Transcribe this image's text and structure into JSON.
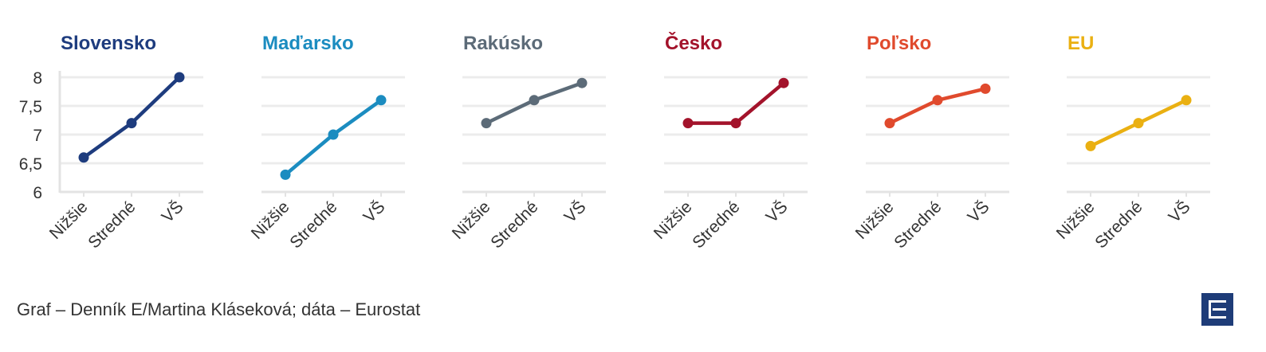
{
  "chart_data": {
    "type": "line",
    "categories": [
      "Nižšie",
      "Stredné",
      "VŠ"
    ],
    "ylim": [
      6,
      8
    ],
    "yticks": [
      "6",
      "6,5",
      "7",
      "7,5",
      "8"
    ],
    "ytick_values": [
      6,
      6.5,
      7,
      7.5,
      8
    ],
    "grid": true,
    "panels": [
      {
        "title": "Slovensko",
        "color": "#1e3c7e",
        "values": [
          6.6,
          7.2,
          8.0
        ]
      },
      {
        "title": "Maďarsko",
        "color": "#1b8cc0",
        "values": [
          6.3,
          7.0,
          7.6
        ]
      },
      {
        "title": "Rakúsko",
        "color": "#5c6b78",
        "values": [
          7.2,
          7.6,
          7.9
        ]
      },
      {
        "title": "Česko",
        "color": "#a3132b",
        "values": [
          7.2,
          7.2,
          7.9
        ]
      },
      {
        "title": "Poľsko",
        "color": "#e04a2d",
        "values": [
          7.2,
          7.6,
          7.8
        ]
      },
      {
        "title": "EU",
        "color": "#eab012",
        "values": [
          6.8,
          7.2,
          7.6
        ]
      }
    ]
  },
  "footer": {
    "credit": "Graf – Denník E/Martina Kláseková; dáta – Eurostat"
  },
  "logo": {
    "icon": "denník-e-logo-icon",
    "color": "#1e3c78"
  }
}
